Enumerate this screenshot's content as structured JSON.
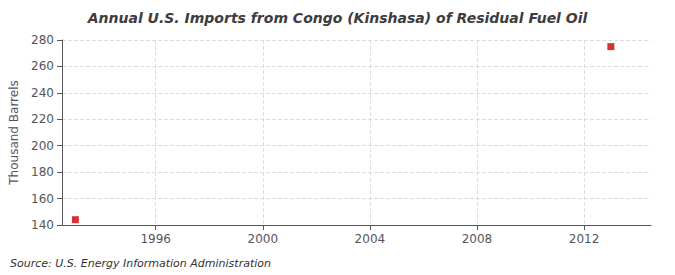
{
  "chart_data": {
    "type": "scatter",
    "title": "Annual U.S. Imports from Congo (Kinshasa) of Residual Fuel Oil",
    "ylabel": "Thousand Barrels",
    "annotation": "Source: U.S. Energy Information Administration",
    "x": [
      1993,
      2013
    ],
    "values": [
      144,
      275
    ],
    "color": "#cc0000",
    "marker": "square",
    "xlim": [
      1992.5,
      2014.5
    ],
    "ylim": [
      140,
      280
    ],
    "xticks": [
      1996,
      2000,
      2004,
      2008,
      2012
    ],
    "yticks": [
      140,
      160,
      180,
      200,
      220,
      240,
      260,
      280
    ],
    "grid": true
  }
}
